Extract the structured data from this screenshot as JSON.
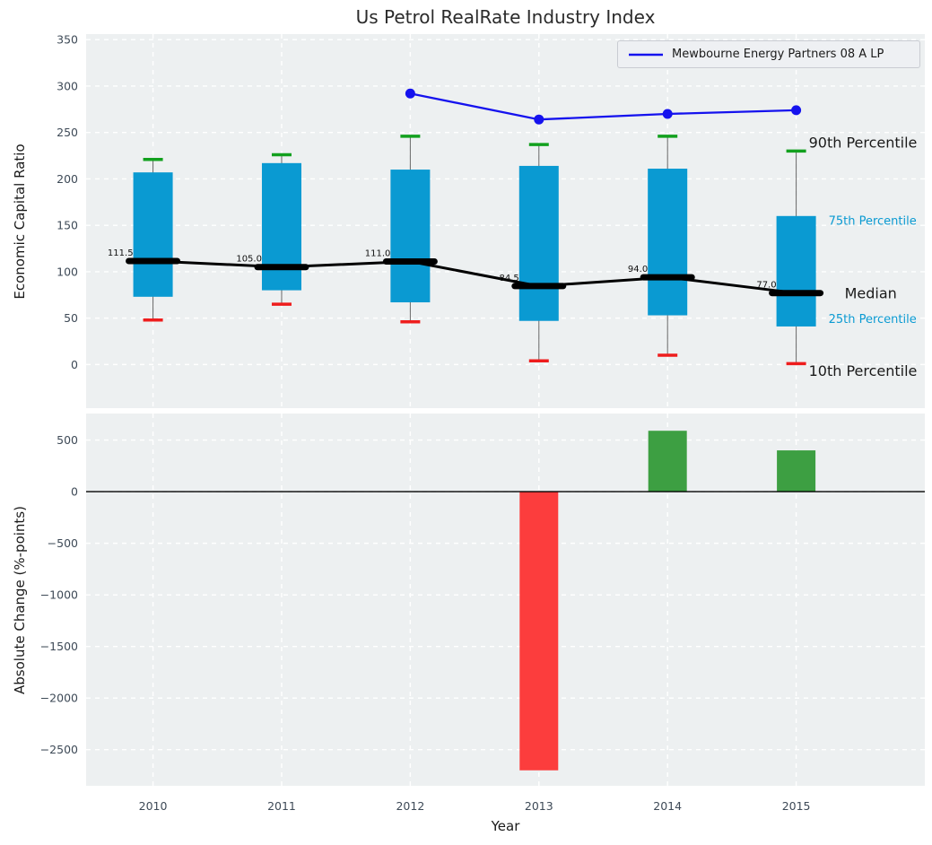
{
  "figure": {
    "background": "#ffffff",
    "axes_background": "#edf0f1",
    "tick_color": "#3e4a57",
    "grid_color": "#ffffff"
  },
  "chart_data": [
    {
      "type": "boxplot-line",
      "title": "Us Petrol RealRate Industry Index",
      "ylabel": "Economic Capital Ratio",
      "categories": [
        2010,
        2011,
        2012,
        2013,
        2014,
        2015
      ],
      "xlim": [
        2009.48,
        2016.0
      ],
      "ylim": [
        -47,
        356
      ],
      "yticks": [
        0,
        50,
        100,
        150,
        200,
        250,
        300,
        350
      ],
      "grid": true,
      "percentiles": {
        "p90": [
          221,
          226,
          246,
          237,
          246,
          230
        ],
        "p75": [
          207,
          217,
          210,
          214,
          211,
          160
        ],
        "median": [
          111.5,
          105.0,
          111.0,
          84.5,
          94.0,
          77.0
        ],
        "p25": [
          73,
          80,
          67,
          47,
          53,
          41
        ],
        "p10": [
          48,
          65,
          46,
          4,
          10,
          1
        ]
      },
      "median_labels": [
        "111.5",
        "105.0",
        "111.0",
        "84.5",
        "94.0",
        "77.0"
      ],
      "series": [
        {
          "name": "Mewbourne Energy Partners 08 A LP",
          "x": [
            2012,
            2013,
            2014,
            2015
          ],
          "y": [
            292,
            264,
            270,
            274
          ],
          "color": "#1512ee"
        }
      ],
      "legend": {
        "label": "Mewbourne Energy Partners 08 A LP",
        "position": "upper right"
      },
      "annotations": [
        {
          "label": "90th Percentile",
          "value": 239,
          "color": "#1a1a1a",
          "size": 16,
          "x_offset": 14
        },
        {
          "label": "75th Percentile",
          "value": 155,
          "color": "#0a9ad2",
          "size": 13,
          "x_offset": 36
        },
        {
          "label": "Median",
          "value": 77,
          "color": "#1a1a1a",
          "size": 16,
          "x_offset": 54
        },
        {
          "label": "25th Percentile",
          "value": 49,
          "color": "#0a9ad2",
          "size": 13,
          "x_offset": 36
        },
        {
          "label": "10th Percentile",
          "value": -7,
          "color": "#1a1a1a",
          "size": 16,
          "x_offset": 14
        }
      ],
      "colors": {
        "box": "#0a9ad2",
        "cap_high": "#12a01e",
        "cap_low": "#ee1d1d",
        "median": "#000000",
        "whisker": "#666666"
      }
    },
    {
      "type": "bar",
      "ylabel": "Absolute Change (%-points)",
      "xlabel": "Year",
      "categories": [
        2010,
        2011,
        2012,
        2013,
        2014,
        2015
      ],
      "values": [
        null,
        null,
        null,
        -2700,
        590,
        400
      ],
      "bar_colors": {
        "positive": "#3d9f42",
        "negative": "#fc3d3d"
      },
      "yticks": [
        500,
        0,
        -500,
        -1000,
        -1500,
        -2000,
        -2500
      ],
      "ylim": [
        -2850,
        757
      ],
      "zero_line": true,
      "grid": true
    }
  ]
}
